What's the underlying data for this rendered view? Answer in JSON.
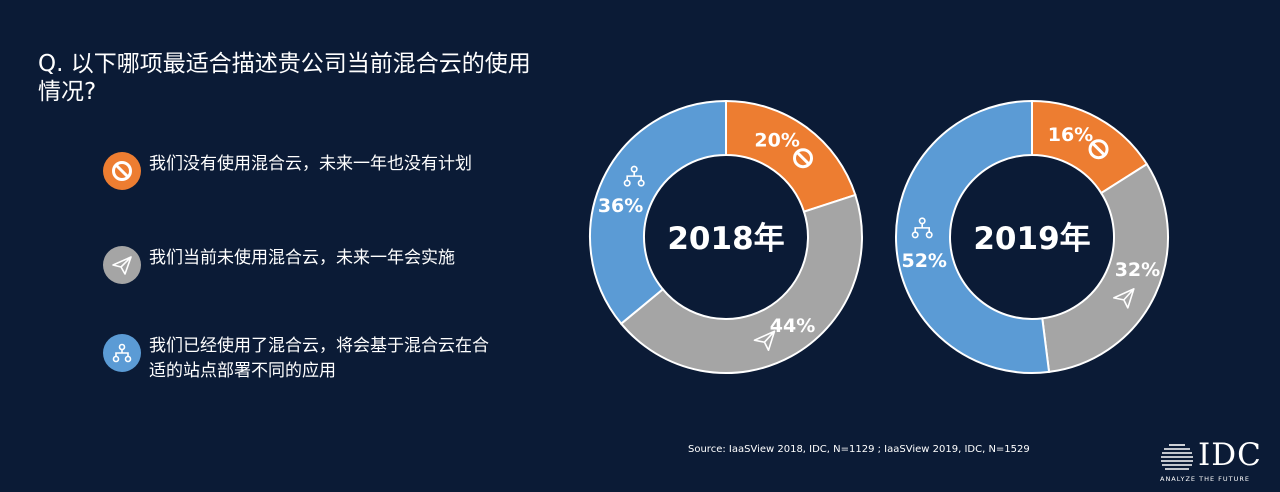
{
  "title": "Q. 以下哪项最适合描述贵公司当前混合云的使用情况?",
  "legend": [
    {
      "label": "我们没有使用混合云，未来一年也没有计划",
      "icon": "no-entry-icon",
      "color": "#ed7d31"
    },
    {
      "label": "我们当前未使用混合云，未来一年会实施",
      "icon": "paper-plane-icon",
      "color": "#a5a5a5"
    },
    {
      "label": "我们已经使用了混合云，将会基于混合云在合适的站点部署不同的应用",
      "icon": "hierarchy-icon",
      "color": "#5b9bd5"
    }
  ],
  "chart_data": [
    {
      "type": "pie",
      "center_label": "2018年",
      "categories": [
        "我们没有使用混合云，未来一年也没有计划",
        "我们当前未使用混合云，未来一年会实施",
        "我们已经使用了混合云，将会基于混合云在合适的站点部署不同的应用"
      ],
      "values": [
        20,
        44,
        36
      ],
      "labels": [
        "20%",
        "44%",
        "36%"
      ],
      "colors": [
        "#ed7d31",
        "#a5a5a5",
        "#5b9bd5"
      ]
    },
    {
      "type": "pie",
      "center_label": "2019年",
      "categories": [
        "我们没有使用混合云，未来一年也没有计划",
        "我们当前未使用混合云，未来一年会实施",
        "我们已经使用了混合云，将会基于混合云在合适的站点部署不同的应用"
      ],
      "values": [
        16,
        32,
        52
      ],
      "labels": [
        "16%",
        "32%",
        "52%"
      ],
      "colors": [
        "#ed7d31",
        "#a5a5a5",
        "#5b9bd5"
      ]
    }
  ],
  "source": "Source: IaaSView 2018, IDC, N=1129 ; IaaSView 2019, IDC, N=1529",
  "logo": {
    "text": "IDC",
    "tagline": "ANALYZE THE FUTURE"
  }
}
